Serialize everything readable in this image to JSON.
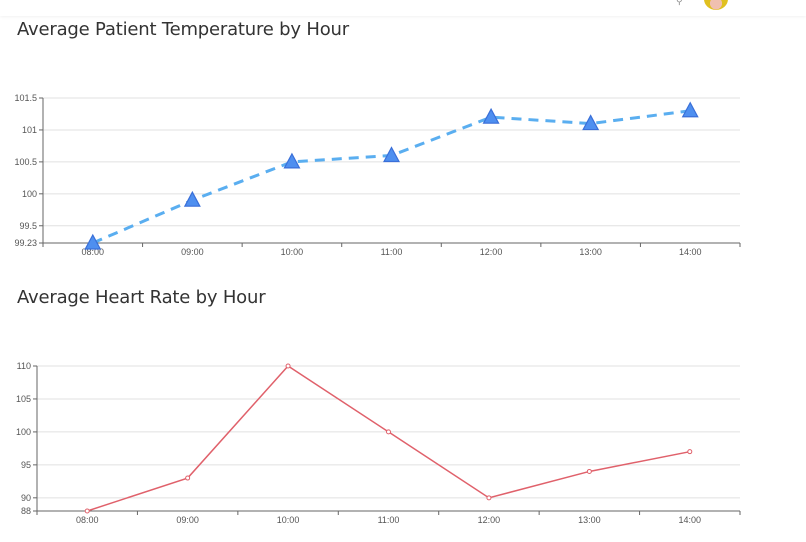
{
  "header": {
    "avatar_icon": "user-avatar",
    "search_icon": "search-icon"
  },
  "chart_data": [
    {
      "type": "line",
      "title": "Average Patient Temperature by Hour",
      "categories": [
        "08:00",
        "09:00",
        "10:00",
        "11:00",
        "12:00",
        "13:00",
        "14:00"
      ],
      "values": [
        99.23,
        99.9,
        100.5,
        100.6,
        101.2,
        101.1,
        101.3
      ],
      "ylim": [
        99.23,
        101.5
      ],
      "yticks": [
        "99.23",
        "99.5",
        "100",
        "100.5",
        "101",
        "101.5"
      ],
      "line_style": "dashed",
      "marker": "triangle",
      "color": "#5aaef0",
      "marker_color": "#4e8ff0",
      "grid": true
    },
    {
      "type": "line",
      "title": "Average Heart Rate by Hour",
      "categories": [
        "08:00",
        "09:00",
        "10:00",
        "11:00",
        "12:00",
        "13:00",
        "14:00"
      ],
      "values": [
        88,
        93,
        110,
        100,
        90,
        94,
        97
      ],
      "ylim": [
        88,
        110
      ],
      "yticks": [
        "88",
        "90",
        "95",
        "100",
        "105",
        "110"
      ],
      "line_style": "solid",
      "marker": "circle",
      "color": "#e0616b",
      "grid": true
    }
  ]
}
